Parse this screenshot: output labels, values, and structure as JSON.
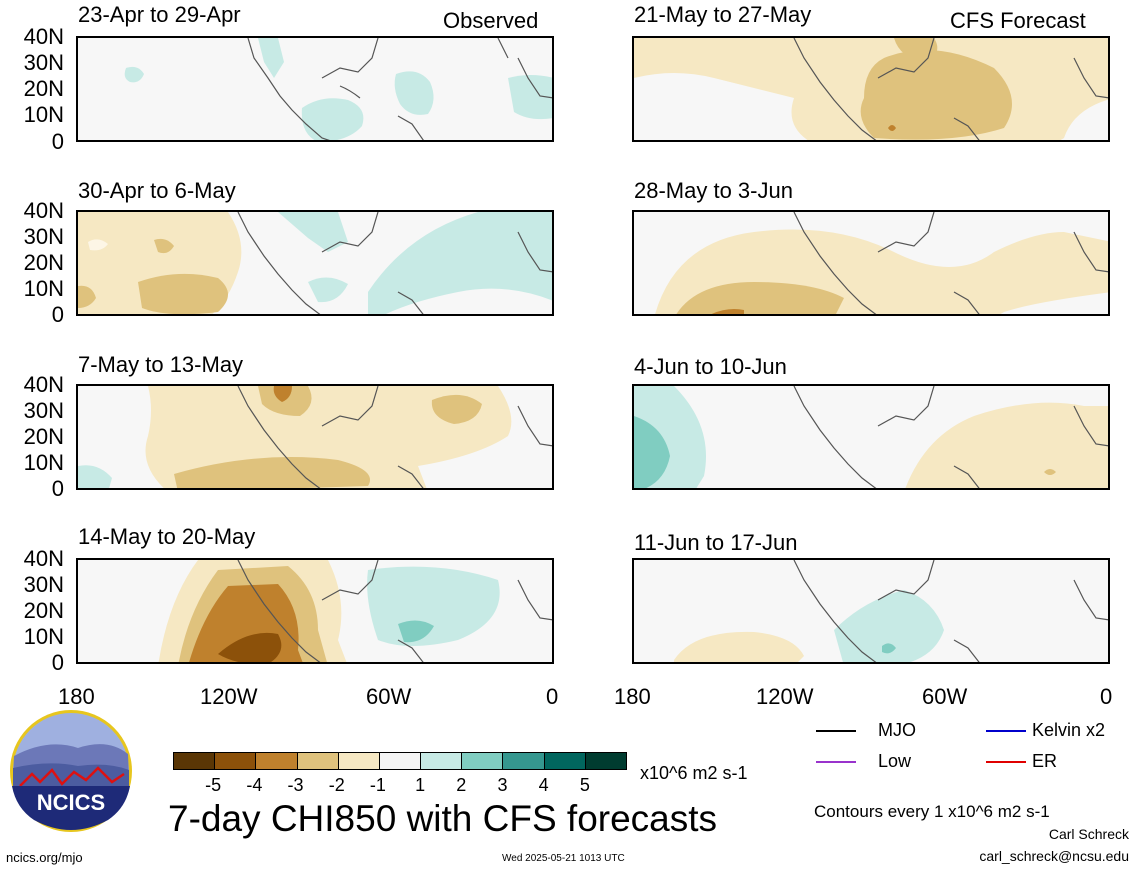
{
  "header": {
    "observed_label": "Observed",
    "forecast_label": "CFS Forecast"
  },
  "panels_left": [
    {
      "title": "23-Apr to 29-Apr"
    },
    {
      "title": "30-Apr to 6-May"
    },
    {
      "title": "7-May to 13-May"
    },
    {
      "title": "14-May to 20-May"
    }
  ],
  "panels_right": [
    {
      "title": "21-May to 27-May"
    },
    {
      "title": "28-May to 3-Jun"
    },
    {
      "title": "4-Jun to 10-Jun"
    },
    {
      "title": "11-Jun to 17-Jun"
    }
  ],
  "lat_ticks": [
    "40N",
    "30N",
    "20N",
    "10N",
    "0"
  ],
  "lon_ticks": [
    "180",
    "120W",
    "60W",
    "0"
  ],
  "colorbar": {
    "ticks": [
      "-5",
      "-4",
      "-3",
      "-2",
      "-1",
      "1",
      "2",
      "3",
      "4",
      "5"
    ],
    "colors": [
      "#5a3605",
      "#8c510a",
      "#bf812d",
      "#dfc27d",
      "#f6e8c3",
      "#f5f5f5",
      "#c7eae5",
      "#80cdc1",
      "#35978f",
      "#01665e",
      "#003c30"
    ],
    "units": "x10^6 m2 s-1"
  },
  "main_title": "7-day CHI850 with CFS forecasts",
  "legend": {
    "mjo": "MJO",
    "kelvin": "Kelvin x2",
    "low": "Low",
    "er": "ER",
    "colors": {
      "mjo": "#000000",
      "kelvin": "#0000cc",
      "low": "#9933cc",
      "er": "#e00000"
    }
  },
  "contours_note": "Contours every 1 x10^6 m2 s-1",
  "author": "Carl Schreck",
  "email": "carl_schreck@ncsu.edu",
  "site": "ncics.org/mjo",
  "timestamp": "Wed 2025-05-21 1013 UTC",
  "logo_text": "NCICS"
}
